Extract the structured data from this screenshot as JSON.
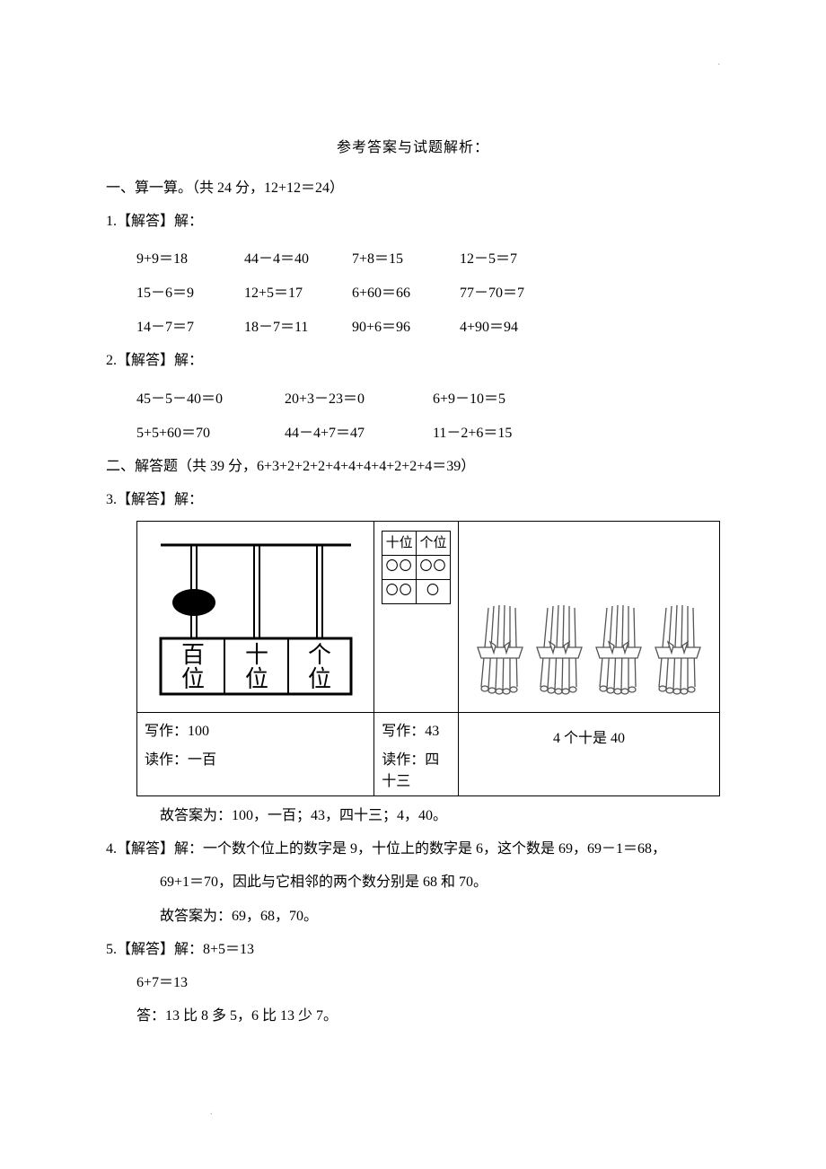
{
  "title": "参考答案与试题解析：",
  "sections": {
    "s1": {
      "header": "一、算一算。（共 24 分，12+12＝24）",
      "q1": {
        "label": "1.【解答】解：",
        "rows": [
          {
            "c0": "9+9＝18",
            "c1": "44－4＝40",
            "c2": "7+8＝15",
            "c3": "12－5＝7"
          },
          {
            "c0": "15－6＝9",
            "c1": "12+5＝17",
            "c2": "6+60＝66",
            "c3": "77－70＝7"
          },
          {
            "c0": "14－7＝7",
            "c1": "18－7＝11",
            "c2": "90+6＝96",
            "c3": "4+90＝94"
          }
        ]
      },
      "q2": {
        "label": "2.【解答】解：",
        "rows": [
          {
            "c0": "45－5－40＝0",
            "c1": "20+3－23＝0",
            "c2": "6+9－10＝5"
          },
          {
            "c0": "5+5+60＝70",
            "c1": "44－4+7＝47",
            "c2": "11－2+6＝15"
          }
        ]
      }
    },
    "s2": {
      "header": "二、解答题（共 39 分，6+3+2+2+2+4+4+4+4+2+2+4＝39）",
      "q3": {
        "label": "3.【解答】解：",
        "abacus_labels": {
          "bai": "百",
          "shi": "十",
          "ge": "个",
          "wei": "位"
        },
        "pv_header": {
          "tens": "十位",
          "ones": "个位"
        },
        "pv_rows": [
          {
            "tens": "〇〇",
            "ones": "〇〇"
          },
          {
            "tens": "〇〇",
            "ones": "〇"
          }
        ],
        "bundle_count": 4,
        "row2": {
          "c1a": "写作：100",
          "c1b": "读作：一百",
          "c2a": "写作：43",
          "c2b": "读作：四十三",
          "c3": "4 个十是 40"
        },
        "answer": "故答案为：100，一百；43，四十三；4，40。"
      },
      "q4": {
        "line1": "4.【解答】解：一个数个位上的数字是 9，十位上的数字是 6，这个数是 69，69－1＝68，",
        "line2": "69+1＝70，因此与它相邻的两个数分别是 68 和 70。",
        "line3": "故答案为：69，68，70。"
      },
      "q5": {
        "line1": "5.【解答】解：8+5＝13",
        "line2": "6+7＝13",
        "line3": "答：13 比 8 多 5，6 比 13 少 7。"
      }
    }
  },
  "colors": {
    "text": "#000000",
    "background": "#ffffff",
    "border": "#000000",
    "bundle_stroke": "#555555",
    "bundle_fill": "#f4f4f4"
  }
}
